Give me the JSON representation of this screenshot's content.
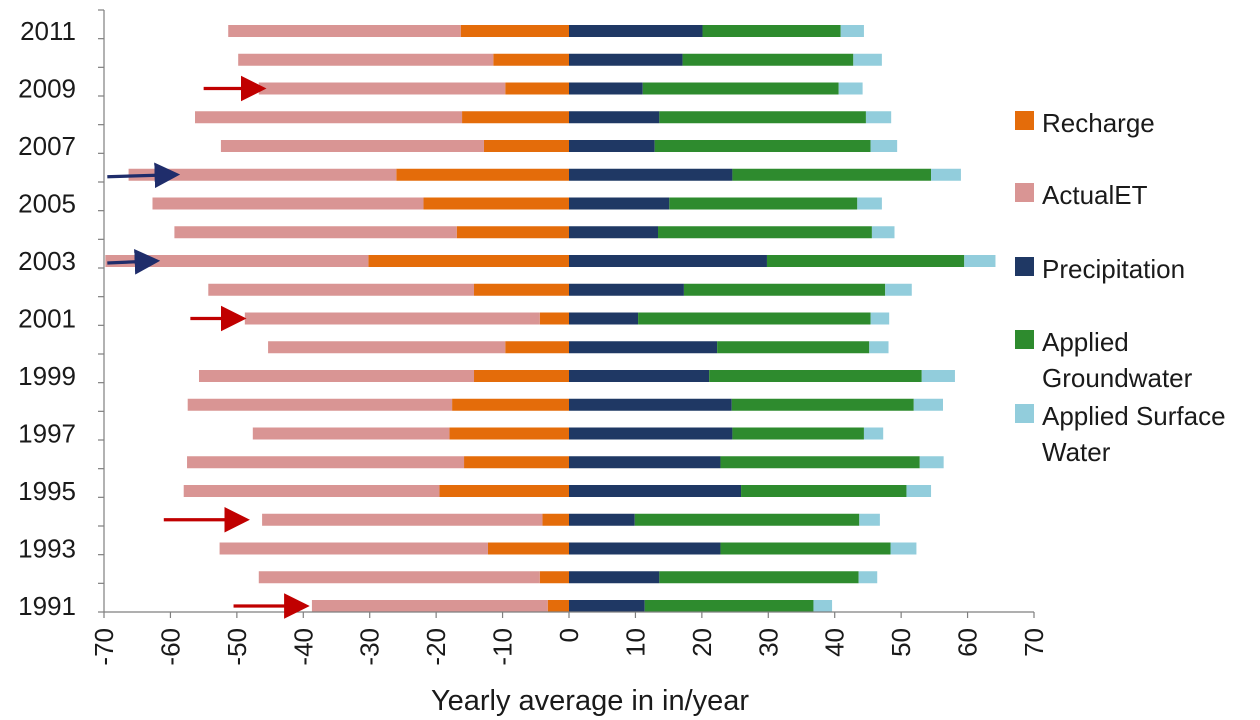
{
  "chart_data": {
    "type": "bar",
    "orientation": "horizontal-diverging-stacked",
    "categories": [
      "1991",
      "1992",
      "1993",
      "1994",
      "1995",
      "1996",
      "1997",
      "1998",
      "1999",
      "2000",
      "2001",
      "2002",
      "2003",
      "2004",
      "2005",
      "2006",
      "2007",
      "2008",
      "2009",
      "2010",
      "2011"
    ],
    "ytick_labels_shown": [
      "1991",
      "1993",
      "1995",
      "1997",
      "1999",
      "2001",
      "2003",
      "2005",
      "2007",
      "2009",
      "2011"
    ],
    "series": [
      {
        "name": "Recharge",
        "color": "#E46C0A",
        "side": "negative",
        "values": [
          -3.2,
          -4.4,
          -12.2,
          -4.0,
          -19.5,
          -15.8,
          -18.0,
          -17.6,
          -14.3,
          -9.6,
          -4.4,
          -14.3,
          -30.2,
          -16.9,
          -21.9,
          -26.0,
          -12.8,
          -16.1,
          -9.6,
          -11.4,
          -16.3
        ]
      },
      {
        "name": "ActualET",
        "color": "#D99594",
        "side": "negative",
        "values": [
          -35.5,
          -42.3,
          -40.4,
          -42.2,
          -38.5,
          -41.7,
          -29.6,
          -39.8,
          -41.4,
          -35.7,
          -44.4,
          -40.0,
          -39.6,
          -42.5,
          -40.8,
          -40.3,
          -39.6,
          -40.2,
          -37.1,
          -38.4,
          -35.0
        ]
      },
      {
        "name": "Precipitation",
        "color": "#1F3864",
        "side": "positive",
        "values": [
          11.4,
          13.6,
          22.8,
          9.9,
          25.9,
          22.8,
          24.6,
          24.5,
          21.1,
          22.3,
          10.4,
          17.3,
          29.8,
          13.4,
          15.1,
          24.6,
          12.9,
          13.6,
          11.1,
          17.1,
          20.1
        ]
      },
      {
        "name": "Applied Groundwater",
        "color": "#2E8B2E",
        "side": "positive",
        "values": [
          25.4,
          30.0,
          25.6,
          33.8,
          24.9,
          30.0,
          19.8,
          27.4,
          32.0,
          22.9,
          35.0,
          30.3,
          29.7,
          32.2,
          28.3,
          29.9,
          32.5,
          31.1,
          29.5,
          25.7,
          20.8
        ]
      },
      {
        "name": "Applied Surface Water",
        "color": "#92CDDC",
        "side": "positive",
        "values": [
          2.8,
          2.8,
          3.9,
          3.1,
          3.7,
          3.6,
          2.9,
          4.4,
          5.0,
          2.9,
          2.8,
          4.0,
          4.7,
          3.4,
          3.7,
          4.5,
          4.0,
          3.8,
          3.6,
          4.3,
          3.5
        ]
      }
    ],
    "xlabel": "Yearly average in in/year",
    "ylabel": "",
    "xlim": [
      -70,
      70
    ],
    "xticks": [
      -70,
      -60,
      -50,
      -40,
      -30,
      -20,
      -10,
      0,
      10,
      20,
      30,
      40,
      50,
      60,
      70
    ],
    "grid": false,
    "legend_position": "right",
    "legend_order": [
      "Recharge",
      "ActualET",
      "Precipitation",
      "Applied Groundwater",
      "Applied Surface Water"
    ],
    "annotations": [
      {
        "type": "arrow",
        "color": "#C00000",
        "year": "2009",
        "x_from": -55,
        "x_to": -46.5
      },
      {
        "type": "arrow",
        "color": "#1F2D6B",
        "year": "2006",
        "x_from": -69.5,
        "x_to": -59.5
      },
      {
        "type": "arrow",
        "color": "#1F2D6B",
        "year": "2003",
        "x_from": -69.5,
        "x_to": -62.5
      },
      {
        "type": "arrow",
        "color": "#C00000",
        "year": "2001",
        "x_from": -57,
        "x_to": -49.5
      },
      {
        "type": "arrow",
        "color": "#C00000",
        "year": "1994",
        "x_from": -61,
        "x_to": -49
      },
      {
        "type": "arrow",
        "color": "#C00000",
        "year": "1991",
        "x_from": -50.5,
        "x_to": -40
      }
    ]
  }
}
